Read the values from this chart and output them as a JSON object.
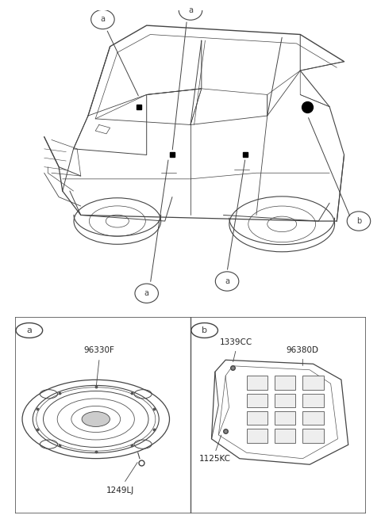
{
  "bg_color": "#ffffff",
  "line_color": "#444444",
  "fig_width": 4.8,
  "fig_height": 6.55,
  "part_a_number": "96330F",
  "part_a_screw": "1249LJ",
  "part_b_main": "96380D",
  "part_b_screw1": "1339CC",
  "part_b_screw2": "1125KC",
  "callout_a": "a",
  "callout_b": "b"
}
